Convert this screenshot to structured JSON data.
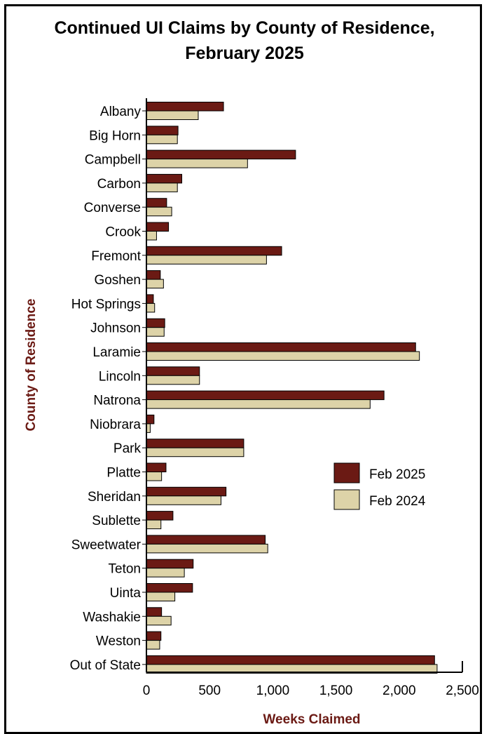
{
  "colors": {
    "feb2025": "#6b1a14",
    "feb2024": "#ddd3a8",
    "axis_title": "#6b1a14"
  },
  "chart_data": {
    "type": "bar",
    "orientation": "horizontal",
    "title": "Continued UI Claims by County of Residence,\nFebruary 2025",
    "xlabel": "Weeks Claimed",
    "ylabel": "County of Residence",
    "xlim": [
      0,
      2500
    ],
    "x_ticks": [
      0,
      500,
      1000,
      1500,
      2000,
      2500
    ],
    "x_tick_labels": [
      "0",
      "500",
      "1,000",
      "1,500",
      "2,000",
      "2,500"
    ],
    "grid": false,
    "legend_position": "right",
    "categories": [
      "Albany",
      "Big Horn",
      "Campbell",
      "Carbon",
      "Converse",
      "Crook",
      "Fremont",
      "Goshen",
      "Hot Springs",
      "Johnson",
      "Laramie",
      "Lincoln",
      "Natrona",
      "Niobrara",
      "Park",
      "Platte",
      "Sheridan",
      "Sublette",
      "Sweetwater",
      "Teton",
      "Uinta",
      "Washakie",
      "Weston",
      "Out of State"
    ],
    "series": [
      {
        "name": "Feb 2025",
        "values": [
          610,
          250,
          1180,
          280,
          160,
          175,
          1070,
          110,
          55,
          145,
          2130,
          420,
          1880,
          60,
          770,
          155,
          630,
          210,
          940,
          370,
          365,
          120,
          115,
          2280
        ]
      },
      {
        "name": "Feb 2024",
        "values": [
          410,
          245,
          800,
          245,
          200,
          80,
          950,
          135,
          65,
          140,
          2160,
          420,
          1770,
          30,
          770,
          120,
          590,
          115,
          960,
          300,
          225,
          195,
          105,
          2300
        ]
      }
    ]
  }
}
